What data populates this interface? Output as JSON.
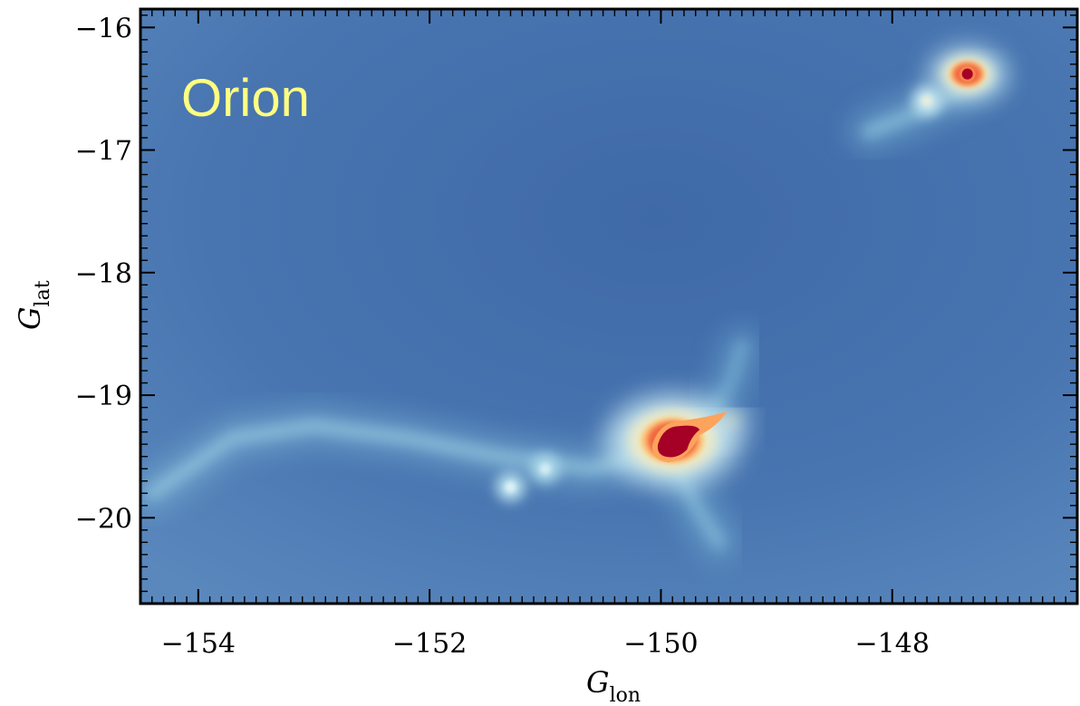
{
  "chart_data": {
    "type": "heatmap",
    "title": "",
    "annotation": "Orion",
    "xlabel": {
      "main": "G",
      "sub": "lon"
    },
    "ylabel": {
      "main": "G",
      "sub": "lat"
    },
    "xlim": [
      -154.5,
      -146.4
    ],
    "ylim": [
      -20.7,
      -15.85
    ],
    "x_ticks": [
      -154,
      -152,
      -150,
      -148
    ],
    "x_tick_labels": [
      "−154",
      "−152",
      "−150",
      "−148"
    ],
    "y_ticks": [
      -16,
      -17,
      -18,
      -19,
      -20
    ],
    "y_tick_labels": [
      "−16",
      "−17",
      "−18",
      "−19",
      "−20"
    ],
    "grid": false,
    "colormap": "RdYlBu_r",
    "colors": {
      "background": "#4673ae",
      "annotation": "#ffff80",
      "peak": "#a50026"
    },
    "features": [
      {
        "name": "main-core",
        "x": -149.9,
        "y": -19.37,
        "intensity": 1.0
      },
      {
        "name": "northeast-core",
        "x": -147.35,
        "y": -16.38,
        "intensity": 0.95
      },
      {
        "name": "northeast-knot",
        "x": -147.7,
        "y": -16.6,
        "intensity": 0.45
      },
      {
        "name": "south-knot-1",
        "x": -151.3,
        "y": -19.75,
        "intensity": 0.42
      },
      {
        "name": "south-knot-2",
        "x": -151.0,
        "y": -19.6,
        "intensity": 0.4
      }
    ],
    "filaments": [
      {
        "name": "southern-ridge",
        "points": [
          [
            -154.4,
            -19.8
          ],
          [
            -153.7,
            -19.35
          ],
          [
            -153.0,
            -19.25
          ],
          [
            -152.2,
            -19.35
          ],
          [
            -151.4,
            -19.5
          ],
          [
            -150.6,
            -19.6
          ],
          [
            -150.0,
            -19.45
          ]
        ],
        "intensity": 0.34
      },
      {
        "name": "core-extension",
        "points": [
          [
            -150.0,
            -19.4
          ],
          [
            -149.6,
            -19.25
          ],
          [
            -149.4,
            -19.2
          ]
        ],
        "intensity": 0.6
      },
      {
        "name": "core-plume-south",
        "points": [
          [
            -149.9,
            -19.5
          ],
          [
            -149.7,
            -19.9
          ],
          [
            -149.5,
            -20.2
          ]
        ],
        "intensity": 0.3
      },
      {
        "name": "core-plume-north",
        "points": [
          [
            -149.6,
            -19.2
          ],
          [
            -149.4,
            -18.9
          ],
          [
            -149.3,
            -18.6
          ]
        ],
        "intensity": 0.25
      },
      {
        "name": "northeast-ridge",
        "points": [
          [
            -148.2,
            -16.85
          ],
          [
            -147.8,
            -16.7
          ],
          [
            -147.5,
            -16.55
          ],
          [
            -147.2,
            -16.4
          ]
        ],
        "intensity": 0.32
      }
    ]
  }
}
